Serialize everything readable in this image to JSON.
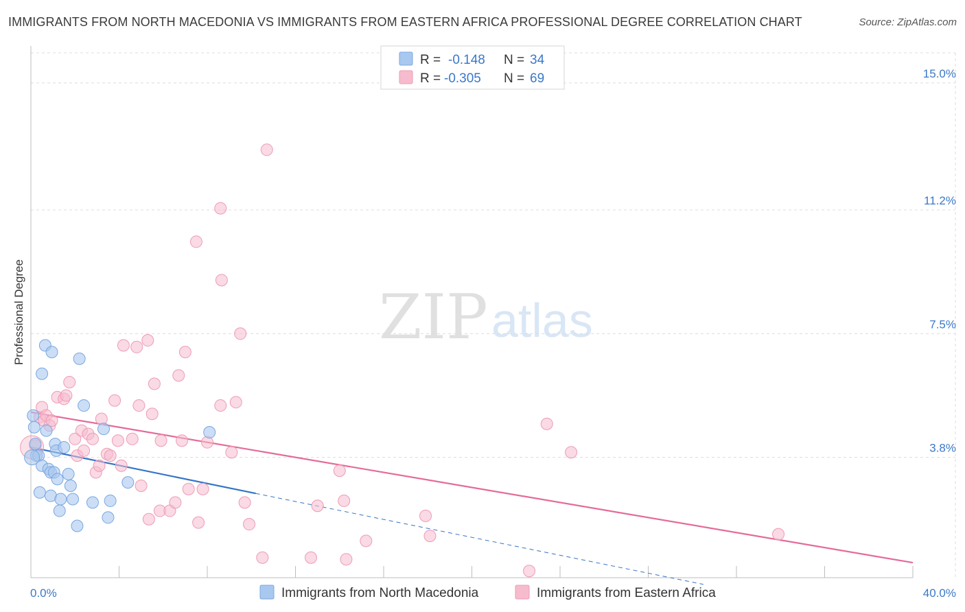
{
  "title": "IMMIGRANTS FROM NORTH MACEDONIA VS IMMIGRANTS FROM EASTERN AFRICA PROFESSIONAL DEGREE CORRELATION CHART",
  "source": "Source: ZipAtlas.com",
  "watermark": {
    "zip": "ZIP",
    "atlas": "atlas"
  },
  "legend_top": [
    {
      "r_label": "R =",
      "r_value": "-0.148",
      "n_label": "N =",
      "n_value": "34"
    },
    {
      "r_label": "R =",
      "r_value": "-0.305",
      "n_label": "N =",
      "n_value": "69"
    }
  ],
  "colors": {
    "blue_fill": "#a9c8ef",
    "blue_stroke": "#7aa6e0",
    "blue_line": "#3373c9",
    "pink_fill": "#f6bccd",
    "pink_stroke": "#ee9bb5",
    "pink_line": "#e46a98",
    "value_text": "#3a78c8",
    "grid": "#dcdcdc"
  },
  "chart_data": {
    "type": "scatter",
    "title": "IMMIGRANTS FROM NORTH MACEDONIA VS IMMIGRANTS FROM EASTERN AFRICA PROFESSIONAL DEGREE CORRELATION CHART",
    "xlabel": "",
    "ylabel": "Professional Degree",
    "xlim": [
      0,
      40
    ],
    "ylim": [
      0.2,
      15.9
    ],
    "x_tick_labels": [
      "0.0%",
      "40.0%"
    ],
    "y_ticks": [
      3.8,
      7.5,
      11.2,
      15.0
    ],
    "y_tick_labels": [
      "3.8%",
      "7.5%",
      "11.2%",
      "15.0%"
    ],
    "legend": [
      "Immigrants from North Macedonia",
      "Immigrants from Eastern Africa"
    ],
    "series": [
      {
        "name": "Immigrants from North Macedonia",
        "r": -0.148,
        "n": 34,
        "trend": {
          "x0": 0,
          "y0": 4.1,
          "x1": 10.2,
          "y1": 2.72,
          "dash_to_x": 30.5,
          "dash_to_y": 0.0
        },
        "points": [
          [
            0.1,
            5.05
          ],
          [
            0.15,
            4.7
          ],
          [
            0.2,
            4.2
          ],
          [
            0.25,
            3.85
          ],
          [
            0.35,
            3.85
          ],
          [
            0.4,
            2.75
          ],
          [
            0.5,
            6.3
          ],
          [
            0.5,
            3.55
          ],
          [
            0.65,
            7.15
          ],
          [
            0.7,
            4.6
          ],
          [
            0.8,
            3.45
          ],
          [
            0.9,
            3.35
          ],
          [
            0.9,
            2.65
          ],
          [
            0.95,
            6.95
          ],
          [
            1.05,
            3.35
          ],
          [
            1.1,
            4.2
          ],
          [
            1.15,
            4.0
          ],
          [
            1.2,
            3.15
          ],
          [
            1.3,
            2.2
          ],
          [
            1.35,
            2.55
          ],
          [
            1.5,
            4.1
          ],
          [
            1.7,
            3.3
          ],
          [
            1.8,
            2.95
          ],
          [
            1.9,
            2.55
          ],
          [
            2.2,
            6.75
          ],
          [
            2.1,
            1.75
          ],
          [
            2.4,
            5.35
          ],
          [
            2.8,
            2.45
          ],
          [
            3.3,
            4.65
          ],
          [
            3.5,
            2.0
          ],
          [
            3.6,
            2.5
          ],
          [
            4.4,
            3.05
          ],
          [
            8.1,
            4.55
          ],
          [
            0.05,
            3.8
          ]
        ]
      },
      {
        "name": "Immigrants from Eastern Africa",
        "r": -0.305,
        "n": 69,
        "trend": {
          "x0": 0,
          "y0": 5.15,
          "x1": 40,
          "y1": 0.65
        },
        "points": [
          [
            0.2,
            4.15
          ],
          [
            0.4,
            5.0
          ],
          [
            0.5,
            5.3
          ],
          [
            0.6,
            4.9
          ],
          [
            0.7,
            5.05
          ],
          [
            0.85,
            4.75
          ],
          [
            0.95,
            4.9
          ],
          [
            1.2,
            5.6
          ],
          [
            1.5,
            5.55
          ],
          [
            1.6,
            5.65
          ],
          [
            1.75,
            6.05
          ],
          [
            2.0,
            4.35
          ],
          [
            2.1,
            3.85
          ],
          [
            2.3,
            4.6
          ],
          [
            2.4,
            4.0
          ],
          [
            2.6,
            4.5
          ],
          [
            2.8,
            4.35
          ],
          [
            2.95,
            3.35
          ],
          [
            3.1,
            3.55
          ],
          [
            3.2,
            4.95
          ],
          [
            3.45,
            3.9
          ],
          [
            3.6,
            3.85
          ],
          [
            3.8,
            5.5
          ],
          [
            3.95,
            4.3
          ],
          [
            4.1,
            3.55
          ],
          [
            4.2,
            7.15
          ],
          [
            4.6,
            4.35
          ],
          [
            4.8,
            7.1
          ],
          [
            4.9,
            5.35
          ],
          [
            5.0,
            2.95
          ],
          [
            5.3,
            7.3
          ],
          [
            5.35,
            1.95
          ],
          [
            5.5,
            5.1
          ],
          [
            5.6,
            6.0
          ],
          [
            5.85,
            2.2
          ],
          [
            5.9,
            4.3
          ],
          [
            6.3,
            2.2
          ],
          [
            6.55,
            2.45
          ],
          [
            6.7,
            6.25
          ],
          [
            6.85,
            4.3
          ],
          [
            7.0,
            6.95
          ],
          [
            7.15,
            2.85
          ],
          [
            7.5,
            10.25
          ],
          [
            7.6,
            1.85
          ],
          [
            7.8,
            2.85
          ],
          [
            8.0,
            4.25
          ],
          [
            8.6,
            11.25
          ],
          [
            8.65,
            9.1
          ],
          [
            8.6,
            5.35
          ],
          [
            9.1,
            3.95
          ],
          [
            9.3,
            5.45
          ],
          [
            9.5,
            7.5
          ],
          [
            9.7,
            2.45
          ],
          [
            9.9,
            1.8
          ],
          [
            10.5,
            0.8
          ],
          [
            10.7,
            13.0
          ],
          [
            12.7,
            0.8
          ],
          [
            13.0,
            2.35
          ],
          [
            14.0,
            3.4
          ],
          [
            14.2,
            2.5
          ],
          [
            14.3,
            0.75
          ],
          [
            15.2,
            1.3
          ],
          [
            17.9,
            2.05
          ],
          [
            18.1,
            1.45
          ],
          [
            22.6,
            0.4
          ],
          [
            23.4,
            4.8
          ],
          [
            24.5,
            3.95
          ],
          [
            33.9,
            1.5
          ],
          [
            0.05,
            4.1
          ]
        ]
      }
    ]
  }
}
